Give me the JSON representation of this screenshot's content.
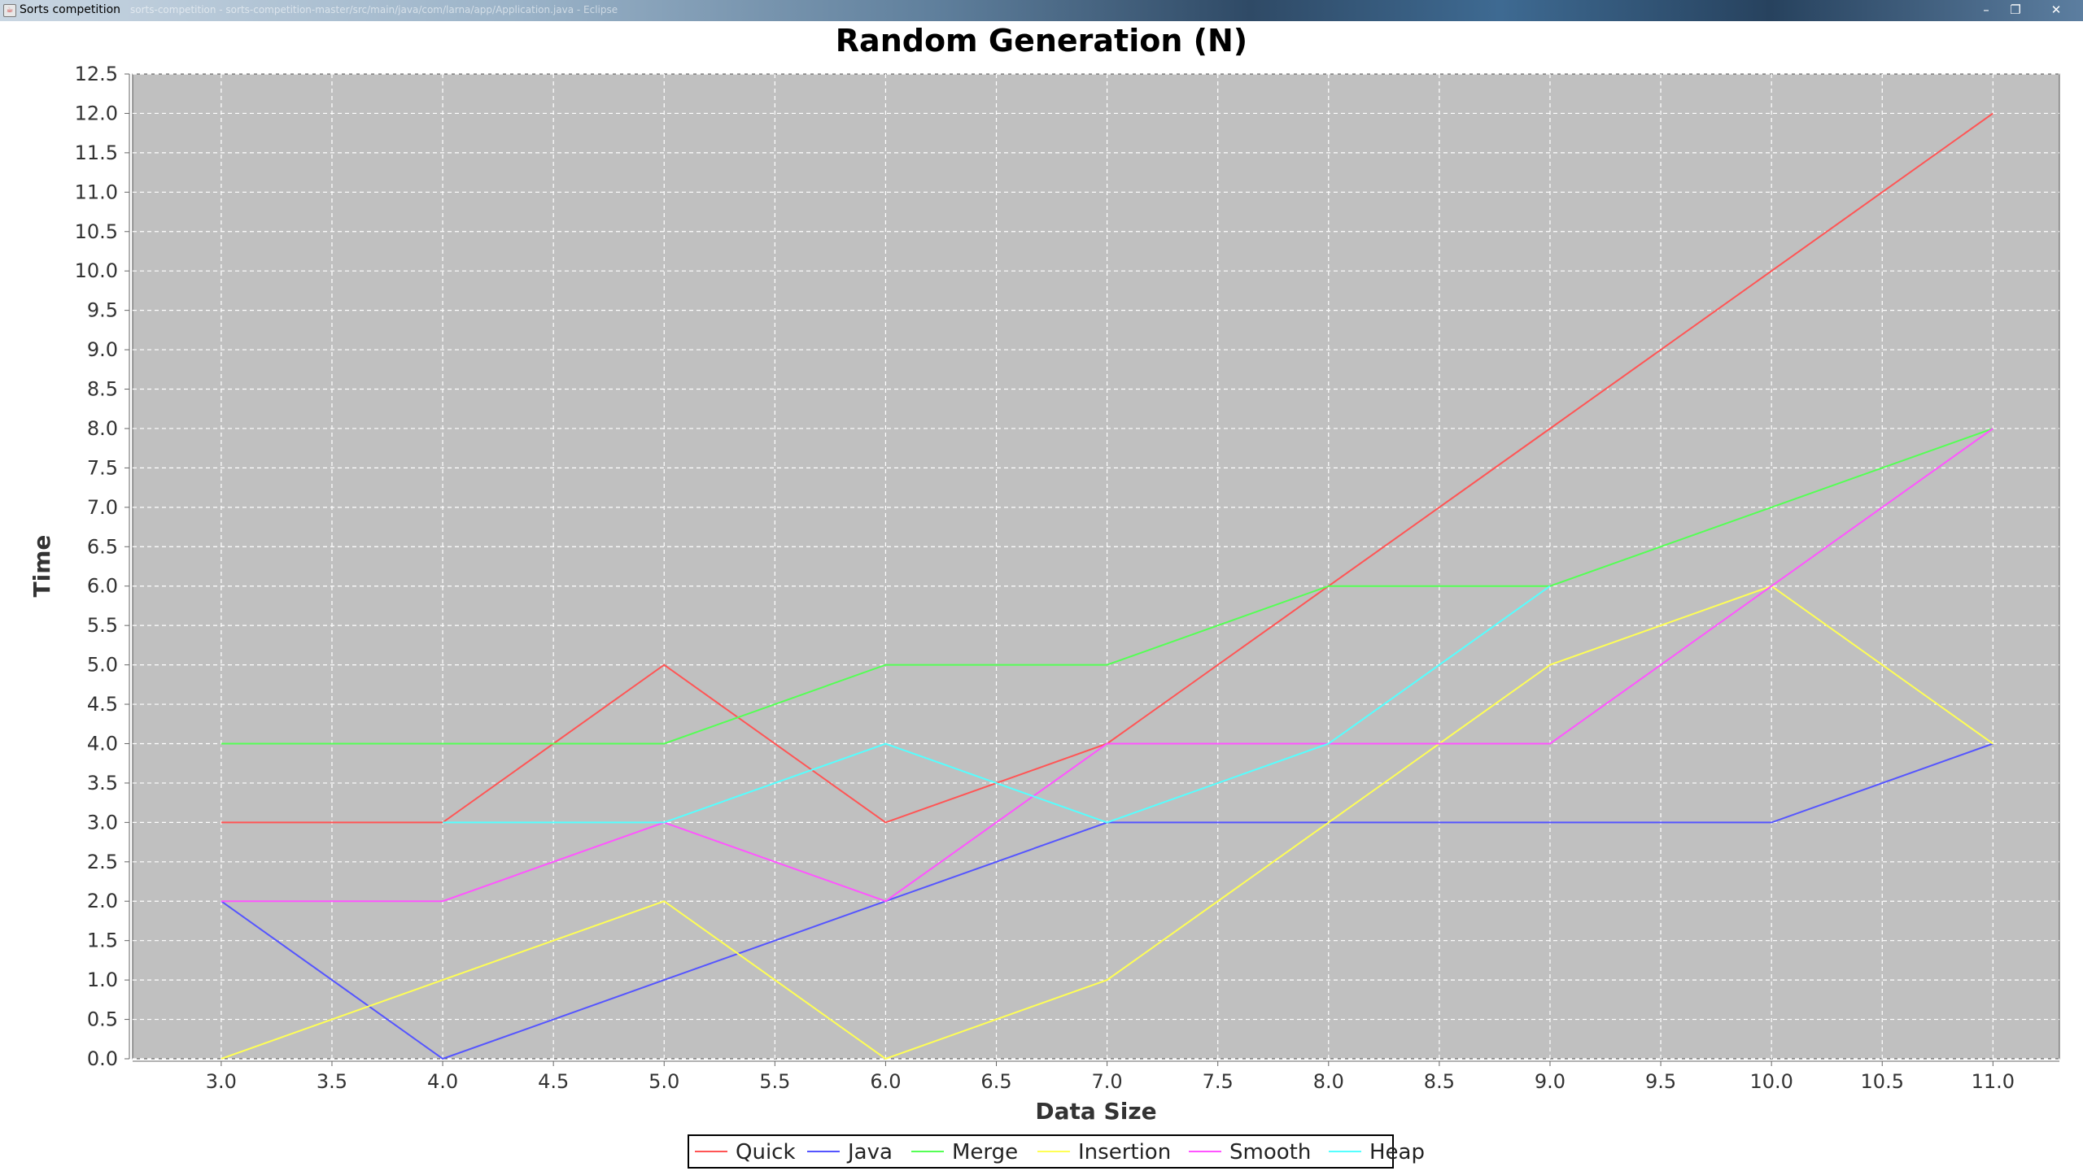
{
  "window": {
    "title": "Sorts competition",
    "path": "sorts-competition - sorts-competition-master/src/main/java/com/larna/app/Application.java - Eclipse",
    "minimize_icon": "minimize-icon",
    "restore_icon": "restore-icon",
    "close_icon": "close-icon"
  },
  "colors": {
    "plot_background": "#c0c0c0",
    "gridline": "#ffffff",
    "Quick": "#ff5555",
    "Java": "#5555ff",
    "Merge": "#55ff55",
    "Insertion": "#ffff55",
    "Smooth": "#ff55ff",
    "Heap": "#55ffff"
  },
  "chart_data": {
    "type": "line",
    "title": "Random Generation (N)",
    "xlabel": "Data Size",
    "ylabel": "Time",
    "xlim": [
      2.6,
      11.3
    ],
    "ylim": [
      0.0,
      12.5
    ],
    "xticks": [
      "3.0",
      "3.5",
      "4.0",
      "4.5",
      "5.0",
      "5.5",
      "6.0",
      "6.5",
      "7.0",
      "7.5",
      "8.0",
      "8.5",
      "9.0",
      "9.5",
      "10.0",
      "10.5",
      "11.0"
    ],
    "yticks": [
      "0.0",
      "0.5",
      "1.0",
      "1.5",
      "2.0",
      "2.5",
      "3.0",
      "3.5",
      "4.0",
      "4.5",
      "5.0",
      "5.5",
      "6.0",
      "6.5",
      "7.0",
      "7.5",
      "8.0",
      "8.5",
      "9.0",
      "9.5",
      "10.0",
      "10.5",
      "11.0",
      "11.5",
      "12.0",
      "12.5"
    ],
    "grid": true,
    "legend_position": "bottom-center",
    "x": [
      3,
      4,
      5,
      6,
      7,
      8,
      9,
      10,
      11
    ],
    "series": [
      {
        "name": "Quick",
        "values": [
          3,
          3,
          5,
          3,
          4,
          6,
          8,
          10,
          12
        ]
      },
      {
        "name": "Java",
        "values": [
          2,
          0,
          1,
          2,
          3,
          3,
          3,
          3,
          4
        ]
      },
      {
        "name": "Merge",
        "values": [
          4,
          4,
          4,
          5,
          5,
          6,
          6,
          7,
          8
        ]
      },
      {
        "name": "Insertion",
        "values": [
          0,
          1,
          2,
          0,
          1,
          3,
          5,
          6,
          4
        ]
      },
      {
        "name": "Smooth",
        "values": [
          2,
          2,
          3,
          2,
          4,
          4,
          4,
          6,
          8
        ]
      },
      {
        "name": "Heap",
        "values": [
          null,
          3,
          3,
          4,
          3,
          4,
          6,
          null,
          null
        ]
      }
    ]
  }
}
